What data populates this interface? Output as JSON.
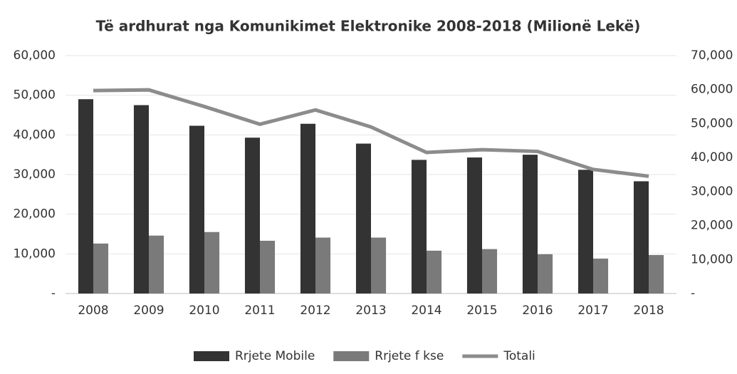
{
  "chart_data": {
    "type": "bar_line",
    "title": "Të ardhurat nga Komunikimet Elektronike 2008-2018 (Milionë Lekë)",
    "categories": [
      "2008",
      "2009",
      "2010",
      "2011",
      "2012",
      "2013",
      "2014",
      "2015",
      "2016",
      "2017",
      "2018"
    ],
    "series": [
      {
        "name": "Rrjete Mobile",
        "color": "#333333",
        "type": "bar",
        "values": [
          49000,
          47500,
          42300,
          39300,
          42800,
          37800,
          33700,
          34300,
          35000,
          31200,
          28300
        ]
      },
      {
        "name": "Rrjete f kse",
        "color": "#7a7a7a",
        "type": "bar",
        "values": [
          12600,
          14600,
          15500,
          13300,
          14100,
          14100,
          10800,
          11200,
          9900,
          8800,
          9700
        ]
      },
      {
        "name": "Totali",
        "color": "#8c8c8c",
        "type": "line",
        "axis": "y2",
        "values": [
          59700,
          59900,
          55000,
          49800,
          54000,
          49000,
          41500,
          42300,
          41800,
          36500,
          34500
        ]
      }
    ],
    "ylim": [
      0,
      60000
    ],
    "yticks": [
      {
        "value": 0,
        "label": "-"
      },
      {
        "value": 10000,
        "label": "10,000"
      },
      {
        "value": 20000,
        "label": "20,000"
      },
      {
        "value": 30000,
        "label": "30,000"
      },
      {
        "value": 40000,
        "label": "40,000"
      },
      {
        "value": 50000,
        "label": "50,000"
      },
      {
        "value": 60000,
        "label": "60,000"
      }
    ],
    "y2lim": [
      0,
      70000
    ],
    "y2ticks": [
      {
        "value": 0,
        "label": "-"
      },
      {
        "value": 10000,
        "label": "10,000"
      },
      {
        "value": 20000,
        "label": "20,000"
      },
      {
        "value": 30000,
        "label": "30,000"
      },
      {
        "value": 40000,
        "label": "40,000"
      },
      {
        "value": 50000,
        "label": "50,000"
      },
      {
        "value": 60000,
        "label": "60,000"
      },
      {
        "value": 70000,
        "label": "70,000"
      }
    ],
    "grid": true,
    "legend": "bottom"
  }
}
